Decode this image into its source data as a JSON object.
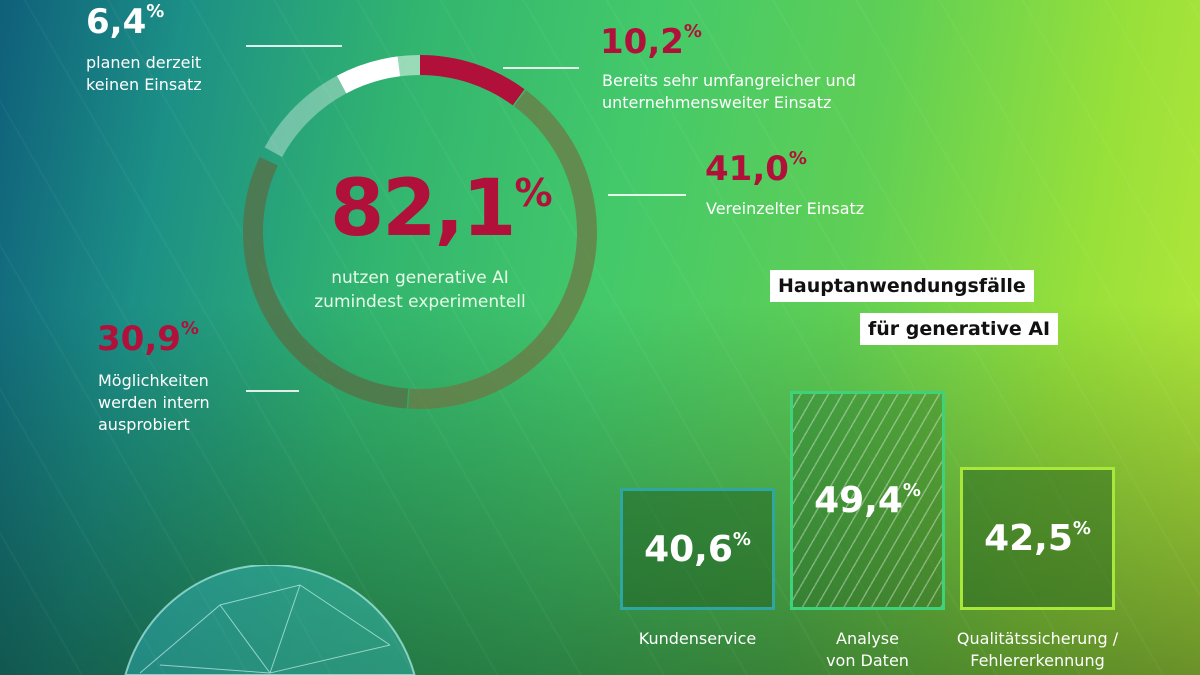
{
  "chart_data": [
    {
      "type": "pie",
      "variant": "donut",
      "center": {
        "value": "82,1",
        "unit": "%",
        "label": "nutzen generative AI\nzumindest experimentell"
      },
      "segments": [
        {
          "value": "10,2",
          "unit": "%",
          "label": "Bereits sehr umfangreicher und\nunternehmensweiter Einsatz",
          "color": "#b1103a"
        },
        {
          "value": "41,0",
          "unit": "%",
          "label": "Vereinzelter Einsatz",
          "color": "#6b8a4a"
        },
        {
          "value": "30,9",
          "unit": "%",
          "label": "Möglichkeiten\nwerden intern\nausprobiert",
          "color": "#5f8550"
        },
        {
          "value": "6,4",
          "unit": "%",
          "label": "planen derzeit\nkeinen Einsatz",
          "color": "#ffffff"
        }
      ]
    },
    {
      "type": "bar",
      "title": "Hauptanwendungsfälle\nfür generative AI",
      "title_lines": [
        "Hauptanwendungsfälle",
        "für generative AI"
      ],
      "categories": [
        "Kundenservice",
        "Analyse\nvon Daten",
        "Qualitätssicherung /\nFehlererkennung"
      ],
      "values": [
        40.6,
        49.4,
        42.5
      ],
      "value_labels": [
        "40,6",
        "49,4",
        "42,5"
      ],
      "unit": "%",
      "colors": [
        "#2fa7a0",
        "#3fd27a",
        "#a7e83a"
      ]
    }
  ]
}
